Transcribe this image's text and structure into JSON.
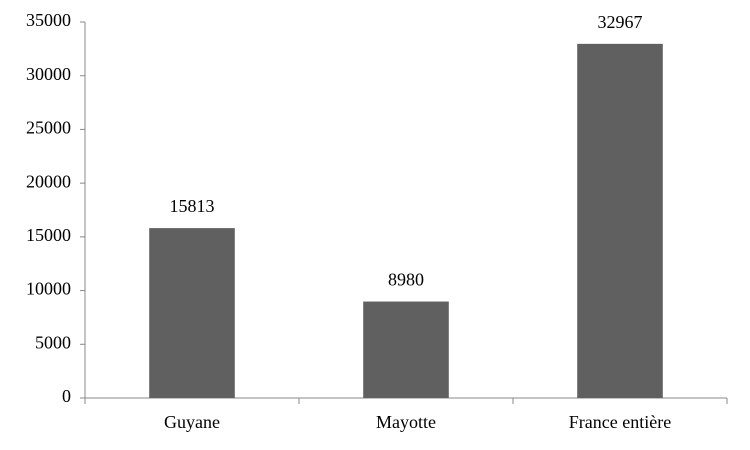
{
  "chart_data": {
    "type": "bar",
    "categories": [
      "Guyane",
      "Mayotte",
      "France entière"
    ],
    "values": [
      15813,
      8980,
      32967
    ],
    "color": "#606060",
    "ylim": [
      0,
      35000
    ],
    "yticks": [
      0,
      5000,
      10000,
      15000,
      20000,
      25000,
      30000,
      35000
    ],
    "grid": false
  }
}
